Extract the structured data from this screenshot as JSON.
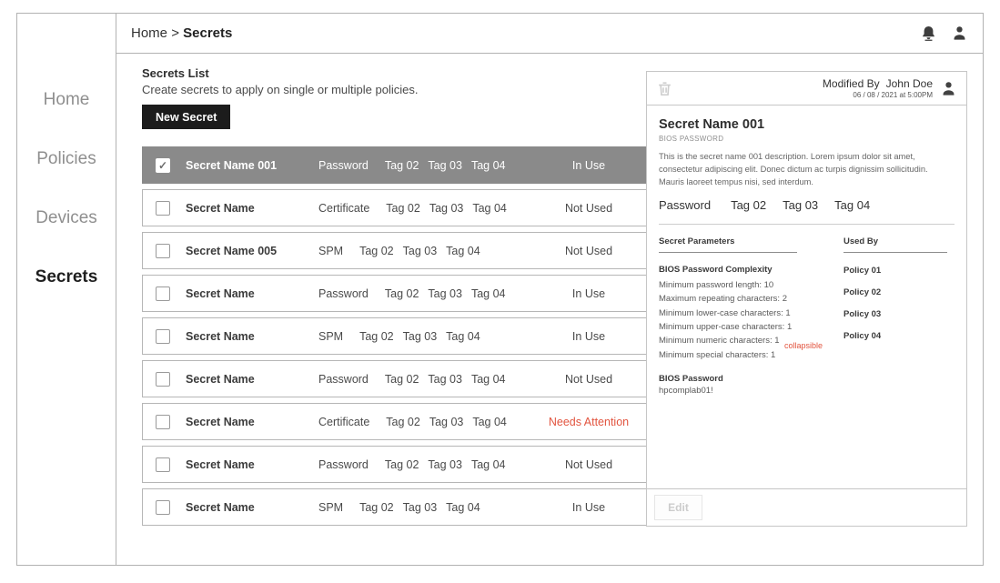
{
  "topbar": {
    "breadcrumb": {
      "root": "Home",
      "separator": ">",
      "current": "Secrets"
    },
    "icons": [
      "bell-icon",
      "user-icon"
    ]
  },
  "sidebar": {
    "items": [
      {
        "label": "Home",
        "active": false
      },
      {
        "label": "Policies",
        "active": false
      },
      {
        "label": "Devices",
        "active": false
      },
      {
        "label": "Secrets",
        "active": true
      }
    ]
  },
  "list": {
    "title": "Secrets List",
    "subtitle": "Create secrets to apply on single or multiple policies.",
    "new_button": "New Secret",
    "rows": [
      {
        "name": "Secret Name 001",
        "type": "Password",
        "tags": [
          "Tag 02",
          "Tag 03",
          "Tag 04"
        ],
        "status": "In Use",
        "selected": true,
        "checked": true,
        "attention": false
      },
      {
        "name": "Secret Name",
        "type": "Certificate",
        "tags": [
          "Tag 02",
          "Tag 03",
          "Tag 04"
        ],
        "status": "Not Used",
        "selected": false,
        "checked": false,
        "attention": false
      },
      {
        "name": "Secret Name 005",
        "type": "SPM",
        "tags": [
          "Tag 02",
          "Tag 03",
          "Tag 04"
        ],
        "status": "Not Used",
        "selected": false,
        "checked": false,
        "attention": false
      },
      {
        "name": "Secret Name",
        "type": "Password",
        "tags": [
          "Tag 02",
          "Tag 03",
          "Tag 04"
        ],
        "status": "In Use",
        "selected": false,
        "checked": false,
        "attention": false
      },
      {
        "name": "Secret Name",
        "type": "SPM",
        "tags": [
          "Tag 02",
          "Tag 03",
          "Tag 04"
        ],
        "status": "In Use",
        "selected": false,
        "checked": false,
        "attention": false
      },
      {
        "name": "Secret Name",
        "type": "Password",
        "tags": [
          "Tag 02",
          "Tag 03",
          "Tag 04"
        ],
        "status": "Not Used",
        "selected": false,
        "checked": false,
        "attention": false
      },
      {
        "name": "Secret Name",
        "type": "Certificate",
        "tags": [
          "Tag 02",
          "Tag 03",
          "Tag 04"
        ],
        "status": "Needs Attention",
        "selected": false,
        "checked": false,
        "attention": true
      },
      {
        "name": "Secret Name",
        "type": "Password",
        "tags": [
          "Tag 02",
          "Tag 03",
          "Tag 04"
        ],
        "status": "Not Used",
        "selected": false,
        "checked": false,
        "attention": false
      },
      {
        "name": "Secret Name",
        "type": "SPM",
        "tags": [
          "Tag 02",
          "Tag 03",
          "Tag 04"
        ],
        "status": "In Use",
        "selected": false,
        "checked": false,
        "attention": false
      }
    ]
  },
  "detail": {
    "modified_by_label": "Modified By",
    "modified_by_name": "John Doe",
    "modified_date": "06 / 08 / 2021 at 5:00PM",
    "name": "Secret Name 001",
    "category": "BIOS PASSWORD",
    "description": "This is the secret name 001 description. Lorem ipsum dolor sit amet, consectetur adipiscing elit. Donec dictum ac turpis dignissim sollicitudin. Mauris laoreet tempus nisi, sed interdum.",
    "type": "Password",
    "tags": [
      "Tag 02",
      "Tag 03",
      "Tag 04"
    ],
    "parameters_header": "Secret Parameters",
    "used_by_header": "Used By",
    "complexity_title": "BIOS Password Complexity",
    "complexity_items": [
      "Minimum password length: 10",
      "Maximum repeating characters: 2",
      "Minimum lower-case characters: 1",
      "Minimum upper-case characters: 1",
      "Minimum numeric characters: 1",
      "Minimum special characters: 1"
    ],
    "collapsible_label": "collapsible",
    "password_title": "BIOS Password",
    "password_value": "hpcomplab01!",
    "policies": [
      "Policy 01",
      "Policy 02",
      "Policy 03",
      "Policy 04"
    ],
    "edit_button": "Edit"
  },
  "colors": {
    "accent_attention": "#e2543f",
    "selected_row_bg": "#8a8a8a",
    "primary_button_bg": "#1c1c1c",
    "border": "#b2b2b2"
  },
  "icons": {
    "trash": "trash-icon",
    "bell": "bell-icon",
    "user": "user-icon",
    "checkmark": "✓"
  }
}
